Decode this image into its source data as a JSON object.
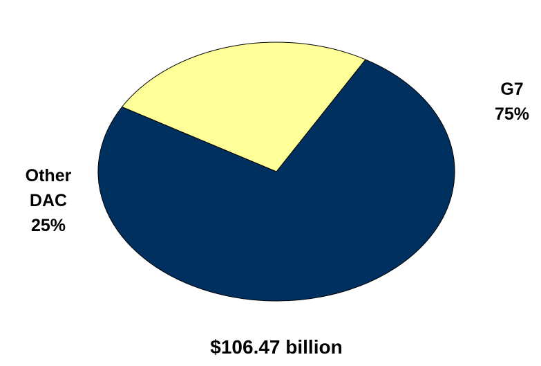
{
  "chart_data": {
    "type": "pie",
    "categories": [
      "G7",
      "Other DAC"
    ],
    "values": [
      75,
      25
    ],
    "slice_labels": [
      [
        "G7",
        "75%"
      ],
      [
        "Other",
        "DAC",
        "25%"
      ]
    ],
    "colors": [
      "#00305f",
      "#ffff99"
    ],
    "edge_color": "#000000",
    "caption": "$106.47 billion",
    "title": "",
    "legend": "none"
  }
}
